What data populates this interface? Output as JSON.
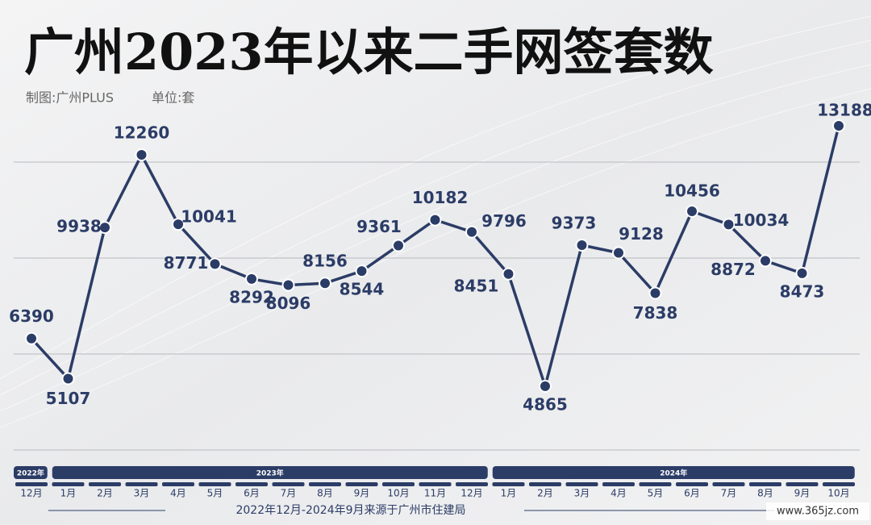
{
  "chart_data": {
    "type": "line",
    "title": "广州2023年以来二手网签套数",
    "subtitle": [
      "制图:广州PLUS",
      "单位:套"
    ],
    "source": "2022年12月-2024年9月来源于广州市住建局",
    "watermark": "www.365jz.com",
    "years": [
      {
        "label": "2022年",
        "months": 1
      },
      {
        "label": "2023年",
        "months": 12
      },
      {
        "label": "2024年",
        "months": 10
      }
    ],
    "categories": [
      "12月",
      "1月",
      "2月",
      "3月",
      "4月",
      "5月",
      "6月",
      "7月",
      "8月",
      "9月",
      "10月",
      "11月",
      "12月",
      "1月",
      "2月",
      "3月",
      "4月",
      "5月",
      "6月",
      "7月",
      "8月",
      "9月",
      "10月"
    ],
    "series": [
      {
        "name": "二手网签套数",
        "color": "#2b3c66",
        "values": [
          6390,
          5107,
          9938,
          12260,
          10041,
          8771,
          8292,
          8096,
          8156,
          8544,
          9361,
          10182,
          9796,
          8451,
          4865,
          9373,
          9128,
          7838,
          10456,
          10034,
          8872,
          8473,
          13188
        ]
      }
    ],
    "ylim": [
      2000,
      14000
    ]
  }
}
